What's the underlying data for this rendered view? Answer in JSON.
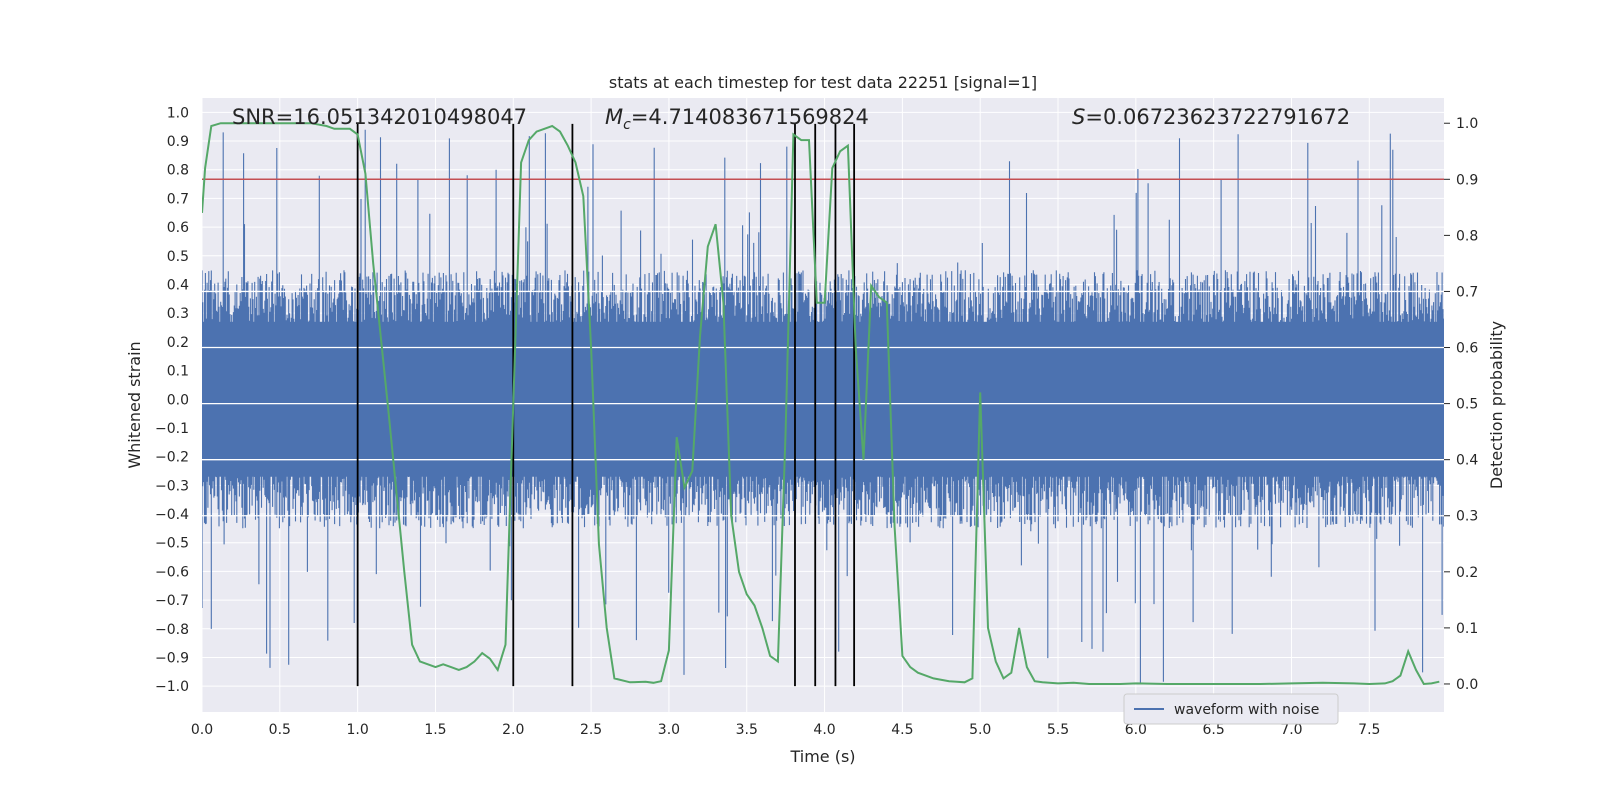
{
  "chart_data": {
    "type": "line",
    "title": "stats at each timestep for test data 22251 [signal=1]",
    "xlabel": "Time (s)",
    "ylabel": "Whitened strain",
    "y2label": "Detection probability",
    "xlim": [
      0.0,
      7.98
    ],
    "ylim": [
      -1.09,
      1.05
    ],
    "y2lim": [
      -0.05,
      1.045
    ],
    "x_ticks": [
      "0.0",
      "0.5",
      "1.0",
      "1.5",
      "2.0",
      "2.5",
      "3.0",
      "3.5",
      "4.0",
      "4.5",
      "5.0",
      "5.5",
      "6.0",
      "6.5",
      "7.0",
      "7.5"
    ],
    "y_ticks": [
      "1.0",
      "0.9",
      "0.8",
      "0.7",
      "0.6",
      "0.5",
      "0.4",
      "0.3",
      "0.2",
      "0.1",
      "0.0",
      "-0.1",
      "-0.2",
      "-0.3",
      "-0.4",
      "-0.5",
      "-0.6",
      "-0.7",
      "-0.8",
      "-0.9",
      "-1.0"
    ],
    "y2_ticks": [
      "1.0",
      "0.9",
      "0.8",
      "0.7",
      "0.6",
      "0.5",
      "0.4",
      "0.3",
      "0.2",
      "0.1",
      "0.0"
    ],
    "grid": true,
    "legend": {
      "position": "lower-right",
      "entries": [
        "waveform with noise"
      ]
    },
    "annotations": {
      "snr": "SNR=16.051342010498047",
      "mc_symbol": "M",
      "mc_sub": "c",
      "mc_value": "=4.714083671569824",
      "s_symbol": "S",
      "s_value": "=0.06723623722791672"
    },
    "threshold": {
      "value": 0.9,
      "axis": "right",
      "color": "#c44e52"
    },
    "vlines_x": [
      1.0,
      2.0,
      2.38,
      3.81,
      3.94,
      4.07,
      4.19
    ],
    "series": [
      {
        "name": "waveform with noise",
        "color": "#4c72b0",
        "envelope": {
          "typical_max": 0.45,
          "typical_min": -0.45,
          "peak_max": 0.96,
          "peak_min": -1.0
        }
      },
      {
        "color": "#55a868",
        "axis": "right",
        "x": [
          0.0,
          0.02,
          0.06,
          0.12,
          0.25,
          0.5,
          0.7,
          0.8,
          0.85,
          0.95,
          1.0,
          1.05,
          1.1,
          1.2,
          1.3,
          1.35,
          1.4,
          1.5,
          1.55,
          1.6,
          1.65,
          1.7,
          1.75,
          1.8,
          1.85,
          1.9,
          1.95,
          2.0,
          2.05,
          2.1,
          2.15,
          2.2,
          2.25,
          2.3,
          2.35,
          2.4,
          2.45,
          2.5,
          2.55,
          2.6,
          2.65,
          2.75,
          2.85,
          2.9,
          2.95,
          3.0,
          3.05,
          3.1,
          3.15,
          3.2,
          3.25,
          3.3,
          3.35,
          3.4,
          3.45,
          3.5,
          3.55,
          3.6,
          3.65,
          3.7,
          3.75,
          3.8,
          3.85,
          3.9,
          3.95,
          4.0,
          4.05,
          4.1,
          4.15,
          4.2,
          4.25,
          4.3,
          4.35,
          4.4,
          4.45,
          4.5,
          4.55,
          4.6,
          4.7,
          4.8,
          4.85,
          4.9,
          4.95,
          5.0,
          5.05,
          5.1,
          5.15,
          5.2,
          5.25,
          5.3,
          5.35,
          5.4,
          5.5,
          5.6,
          5.7,
          5.8,
          5.9,
          6.0,
          6.2,
          6.5,
          6.8,
          7.0,
          7.2,
          7.4,
          7.5,
          7.6,
          7.65,
          7.7,
          7.75,
          7.8,
          7.85,
          7.9,
          7.95
        ],
        "y": [
          0.84,
          0.92,
          0.995,
          1.0,
          1.0,
          1.0,
          1.0,
          0.995,
          0.99,
          0.99,
          0.98,
          0.91,
          0.75,
          0.48,
          0.2,
          0.07,
          0.04,
          0.03,
          0.035,
          0.03,
          0.025,
          0.03,
          0.04,
          0.055,
          0.045,
          0.025,
          0.07,
          0.5,
          0.93,
          0.97,
          0.985,
          0.99,
          0.995,
          0.985,
          0.96,
          0.93,
          0.87,
          0.6,
          0.25,
          0.1,
          0.01,
          0.003,
          0.004,
          0.002,
          0.005,
          0.06,
          0.44,
          0.35,
          0.38,
          0.62,
          0.78,
          0.82,
          0.68,
          0.3,
          0.2,
          0.16,
          0.14,
          0.1,
          0.05,
          0.04,
          0.45,
          0.98,
          0.97,
          0.97,
          0.68,
          0.68,
          0.92,
          0.95,
          0.96,
          0.6,
          0.4,
          0.71,
          0.69,
          0.68,
          0.28,
          0.05,
          0.03,
          0.02,
          0.01,
          0.005,
          0.004,
          0.003,
          0.01,
          0.52,
          0.1,
          0.04,
          0.01,
          0.02,
          0.1,
          0.03,
          0.005,
          0.003,
          0.001,
          0.002,
          0.0,
          0.0,
          0.0,
          0.001,
          0.0,
          0.0,
          0.0,
          0.001,
          0.002,
          0.001,
          0.0,
          0.001,
          0.005,
          0.015,
          0.058,
          0.025,
          0.0,
          0.001,
          0.004
        ]
      }
    ]
  }
}
